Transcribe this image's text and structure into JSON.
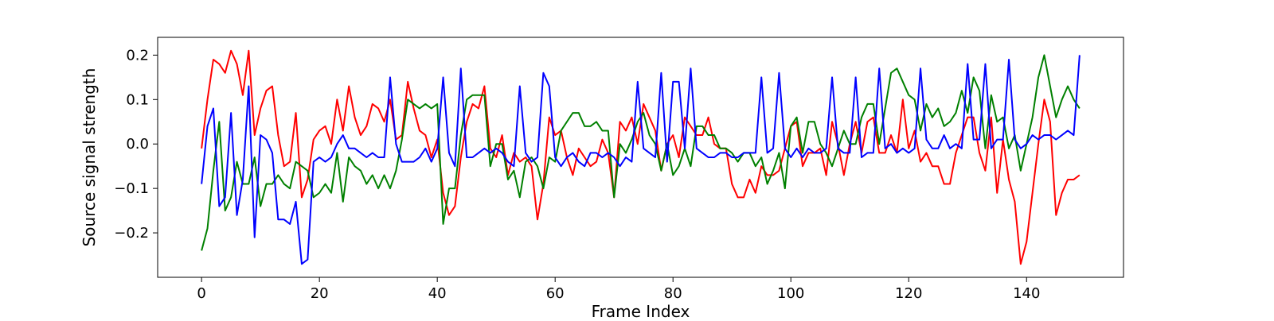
{
  "chart_data": {
    "type": "line",
    "title": "",
    "xlabel": "Frame Index",
    "ylabel": "Source signal strength",
    "xlim": [
      -7.45,
      156.45
    ],
    "ylim": [
      -0.3,
      0.24
    ],
    "xticks": [
      0,
      20,
      40,
      60,
      80,
      100,
      120,
      140
    ],
    "yticks": [
      -0.2,
      -0.1,
      0.0,
      0.1,
      0.2
    ],
    "ytick_labels": [
      "−0.2",
      "−0.1",
      "0.0",
      "0.1",
      "0.2"
    ],
    "grid": false,
    "legend": "none",
    "x": [
      0,
      1,
      2,
      3,
      4,
      5,
      6,
      7,
      8,
      9,
      10,
      11,
      12,
      13,
      14,
      15,
      16,
      17,
      18,
      19,
      20,
      21,
      22,
      23,
      24,
      25,
      26,
      27,
      28,
      29,
      30,
      31,
      32,
      33,
      34,
      35,
      36,
      37,
      38,
      39,
      40,
      41,
      42,
      43,
      44,
      45,
      46,
      47,
      48,
      49,
      50,
      51,
      52,
      53,
      54,
      55,
      56,
      57,
      58,
      59,
      60,
      61,
      62,
      63,
      64,
      65,
      66,
      67,
      68,
      69,
      70,
      71,
      72,
      73,
      74,
      75,
      76,
      77,
      78,
      79,
      80,
      81,
      82,
      83,
      84,
      85,
      86,
      87,
      88,
      89,
      90,
      91,
      92,
      93,
      94,
      95,
      96,
      97,
      98,
      99,
      100,
      101,
      102,
      103,
      104,
      105,
      106,
      107,
      108,
      109,
      110,
      111,
      112,
      113,
      114,
      115,
      116,
      117,
      118,
      119,
      120,
      121,
      122,
      123,
      124,
      125,
      126,
      127,
      128,
      129,
      130,
      131,
      132,
      133,
      134,
      135,
      136,
      137,
      138,
      139,
      140,
      141,
      142,
      143,
      144,
      145,
      146,
      147,
      148,
      149
    ],
    "series": [
      {
        "color": "#ff0000",
        "values": [
          -0.01,
          0.1,
          0.19,
          0.18,
          0.16,
          0.21,
          0.18,
          0.11,
          0.21,
          0.02,
          0.08,
          0.12,
          0.13,
          0.02,
          -0.05,
          -0.04,
          0.07,
          -0.12,
          -0.08,
          0.01,
          0.03,
          0.04,
          0.0,
          0.1,
          0.03,
          0.13,
          0.06,
          0.02,
          0.04,
          0.09,
          0.08,
          0.05,
          0.1,
          0.01,
          0.02,
          0.14,
          0.08,
          0.03,
          0.02,
          -0.03,
          0.01,
          -0.11,
          -0.16,
          -0.14,
          -0.03,
          0.05,
          0.09,
          0.08,
          0.13,
          -0.01,
          -0.03,
          0.02,
          -0.07,
          -0.02,
          -0.04,
          -0.03,
          -0.05,
          -0.17,
          -0.09,
          0.06,
          0.02,
          0.03,
          -0.03,
          -0.07,
          -0.01,
          -0.03,
          -0.05,
          -0.04,
          0.01,
          -0.02,
          -0.12,
          0.05,
          0.03,
          0.06,
          0.0,
          0.09,
          0.06,
          0.03,
          -0.06,
          0.0,
          0.02,
          -0.03,
          0.06,
          0.04,
          0.02,
          0.02,
          0.06,
          0.0,
          -0.01,
          -0.01,
          -0.09,
          -0.12,
          -0.12,
          -0.08,
          -0.11,
          -0.05,
          -0.07,
          -0.07,
          -0.06,
          -0.01,
          0.04,
          0.05,
          -0.05,
          -0.02,
          -0.02,
          -0.01,
          -0.07,
          0.05,
          0.0,
          -0.07,
          0.0,
          0.05,
          -0.02,
          0.05,
          0.06,
          -0.02,
          -0.02,
          0.02,
          -0.02,
          0.1,
          -0.01,
          0.03,
          -0.04,
          -0.02,
          -0.05,
          -0.05,
          -0.09,
          -0.09,
          -0.02,
          0.02,
          0.06,
          0.06,
          -0.02,
          -0.06,
          0.06,
          -0.11,
          0.01,
          -0.08,
          -0.13,
          -0.27,
          -0.22,
          -0.11,
          0.0,
          0.1,
          0.05,
          -0.16,
          -0.11,
          -0.08,
          -0.08,
          -0.07
        ]
      },
      {
        "color": "#008000",
        "values": [
          -0.24,
          -0.19,
          -0.06,
          0.05,
          -0.15,
          -0.12,
          -0.04,
          -0.09,
          -0.09,
          -0.03,
          -0.14,
          -0.09,
          -0.09,
          -0.07,
          -0.09,
          -0.1,
          -0.04,
          -0.05,
          -0.06,
          -0.12,
          -0.11,
          -0.09,
          -0.11,
          -0.02,
          -0.13,
          -0.03,
          -0.05,
          -0.06,
          -0.09,
          -0.07,
          -0.1,
          -0.07,
          -0.1,
          -0.06,
          0.01,
          0.1,
          0.09,
          0.08,
          0.09,
          0.08,
          0.09,
          -0.18,
          -0.1,
          -0.1,
          0.02,
          0.1,
          0.11,
          0.11,
          0.11,
          -0.05,
          0.0,
          0.0,
          -0.08,
          -0.06,
          -0.12,
          -0.04,
          -0.03,
          -0.05,
          -0.1,
          -0.03,
          -0.04,
          0.03,
          0.05,
          0.07,
          0.07,
          0.04,
          0.04,
          0.05,
          0.03,
          0.03,
          -0.12,
          0.0,
          -0.02,
          0.01,
          0.05,
          0.07,
          0.02,
          0.0,
          -0.06,
          0.0,
          -0.07,
          -0.05,
          -0.01,
          -0.05,
          0.04,
          0.04,
          0.02,
          0.02,
          -0.01,
          -0.01,
          -0.02,
          -0.04,
          -0.02,
          -0.02,
          -0.05,
          -0.03,
          -0.09,
          -0.06,
          -0.02,
          -0.1,
          0.04,
          0.06,
          -0.02,
          0.05,
          0.05,
          0.0,
          -0.02,
          -0.05,
          -0.01,
          0.03,
          0.0,
          0.0,
          0.06,
          0.09,
          0.09,
          0.0,
          0.08,
          0.16,
          0.17,
          0.14,
          0.11,
          0.1,
          0.03,
          0.09,
          0.06,
          0.08,
          0.04,
          0.05,
          0.07,
          0.12,
          0.07,
          0.15,
          0.12,
          -0.01,
          0.11,
          0.05,
          0.06,
          -0.01,
          0.02,
          -0.06,
          0.0,
          0.06,
          0.15,
          0.2,
          0.13,
          0.06,
          0.1,
          0.13,
          0.1,
          0.08
        ]
      },
      {
        "color": "#0000ff",
        "values": [
          -0.09,
          0.04,
          0.08,
          -0.14,
          -0.12,
          0.07,
          -0.16,
          -0.08,
          0.13,
          -0.21,
          0.02,
          0.01,
          -0.02,
          -0.17,
          -0.17,
          -0.18,
          -0.13,
          -0.27,
          -0.26,
          -0.04,
          -0.03,
          -0.04,
          -0.03,
          0.0,
          0.02,
          -0.01,
          -0.01,
          -0.02,
          -0.03,
          -0.02,
          -0.03,
          -0.03,
          0.15,
          0.0,
          -0.04,
          -0.04,
          -0.04,
          -0.03,
          -0.01,
          -0.04,
          -0.01,
          0.15,
          -0.02,
          -0.05,
          0.17,
          -0.03,
          -0.03,
          -0.02,
          -0.01,
          -0.02,
          -0.01,
          -0.02,
          -0.04,
          -0.05,
          0.13,
          -0.02,
          -0.04,
          -0.03,
          0.16,
          0.13,
          -0.03,
          -0.05,
          -0.03,
          -0.02,
          -0.04,
          -0.05,
          -0.02,
          -0.02,
          -0.03,
          -0.02,
          -0.03,
          -0.05,
          -0.03,
          -0.04,
          0.14,
          -0.01,
          -0.02,
          -0.03,
          0.16,
          -0.04,
          0.14,
          0.14,
          -0.01,
          0.17,
          -0.01,
          -0.02,
          -0.03,
          -0.03,
          -0.02,
          -0.02,
          -0.03,
          -0.03,
          -0.02,
          -0.02,
          -0.02,
          0.15,
          -0.02,
          -0.01,
          0.16,
          -0.01,
          -0.03,
          -0.01,
          -0.03,
          -0.01,
          -0.02,
          -0.02,
          -0.01,
          0.15,
          -0.01,
          -0.02,
          -0.02,
          0.15,
          -0.03,
          -0.02,
          -0.02,
          0.17,
          -0.01,
          0.0,
          -0.02,
          -0.01,
          -0.02,
          -0.01,
          0.17,
          0.01,
          -0.01,
          -0.01,
          0.02,
          -0.01,
          0.0,
          -0.01,
          0.18,
          0.01,
          0.01,
          0.18,
          -0.01,
          0.01,
          0.01,
          0.19,
          0.01,
          -0.01,
          0.0,
          0.02,
          0.01,
          0.02,
          0.02,
          0.01,
          0.02,
          0.03,
          0.02,
          0.2
        ]
      }
    ]
  }
}
